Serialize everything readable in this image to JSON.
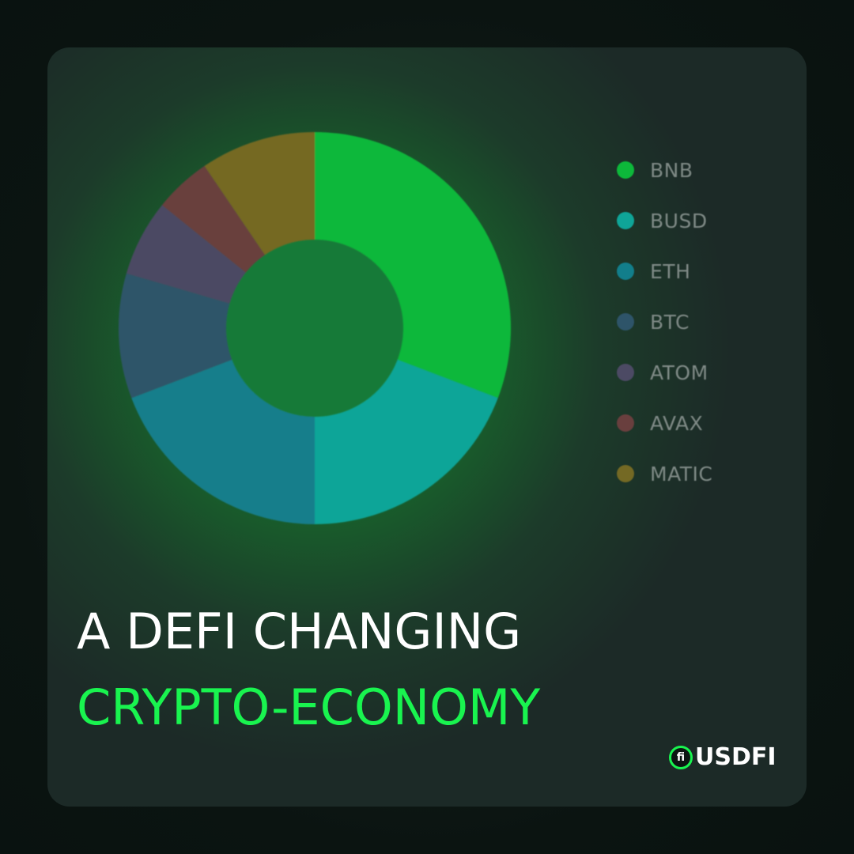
{
  "chart_data": {
    "type": "pie",
    "style": "donut",
    "title": "",
    "legend_position": "right",
    "series": [
      {
        "name": "BNB",
        "value": 30.8,
        "color": "#0db83a"
      },
      {
        "name": "BUSD",
        "value": 19.2,
        "color": "#0fa598"
      },
      {
        "name": "ETH",
        "value": 19.2,
        "color": "#127e8b"
      },
      {
        "name": "BTC",
        "value": 10.3,
        "color": "#2e5469"
      },
      {
        "name": "ATOM",
        "value": 6.3,
        "color": "#4c4a64"
      },
      {
        "name": "AVAX",
        "value": 4.7,
        "color": "#693f3e"
      },
      {
        "name": "MATIC",
        "value": 9.5,
        "color": "#746924"
      }
    ]
  },
  "headline": {
    "line1": "A DEFI CHANGING",
    "line2": "CRYPTO-ECONOMY",
    "accent_color": "#19f44f"
  },
  "brand": {
    "icon_text": "fi",
    "name": "USDFI"
  }
}
